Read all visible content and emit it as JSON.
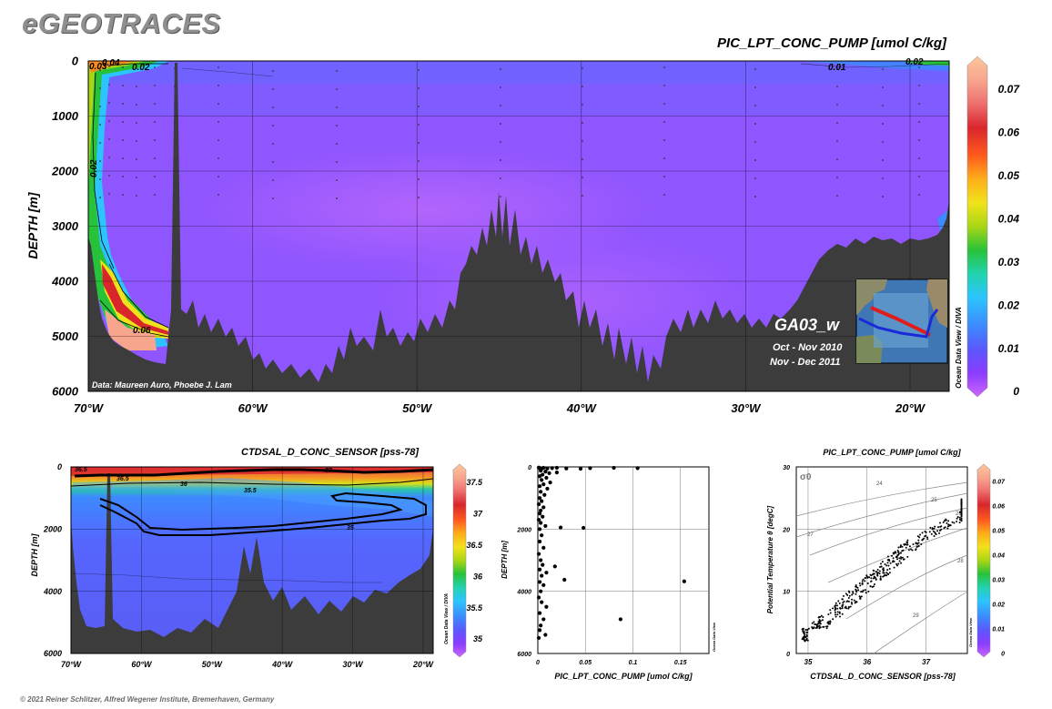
{
  "brand": "eGEOTRACES",
  "footer": "© 2021 Reiner Schlitzer, Alfred Wegener Institute, Bremerhaven, Germany",
  "colorscale": [
    "#cc66ff",
    "#8a3cff",
    "#5b58ff",
    "#3c8bff",
    "#2bc4ff",
    "#22d3b0",
    "#27c23a",
    "#a8d615",
    "#f0e21a",
    "#ffae19",
    "#ff5a1e",
    "#d9262c",
    "#ee6e6e",
    "#f8a58e",
    "#fbc79c"
  ],
  "section_main": {
    "title": "PIC_LPT_CONC_PUMP [umol C/kg]",
    "ylabel": "DEPTH [m]",
    "y_ticks": [
      "0",
      "1000",
      "2000",
      "3000",
      "4000",
      "5000",
      "6000"
    ],
    "x_ticks": [
      "70°W",
      "60°W",
      "50°W",
      "40°W",
      "30°W",
      "20°W"
    ],
    "colorbar_ticks": [
      "0.07",
      "0.06",
      "0.05",
      "0.04",
      "0.03",
      "0.02",
      "0.01",
      "0"
    ],
    "contour_labels": [
      "0.04",
      "0.02",
      "0.01",
      "0.02",
      "0.02",
      "0.06",
      "0.03"
    ],
    "credit": "Data: Maureen Auro, Phoebe J. Lam",
    "cruise": "GA03_w",
    "period1": "Oct - Nov 2010",
    "period2": "Nov - Dec 2011",
    "odv": "Ocean Data View / DIVA"
  },
  "section_sal": {
    "title": "CTDSAL_D_CONC_SENSOR [pss-78]",
    "ylabel": "DEPTH [m]",
    "y_ticks": [
      "0",
      "2000",
      "4000",
      "6000"
    ],
    "x_ticks": [
      "70°W",
      "60°W",
      "50°W",
      "40°W",
      "30°W",
      "20°W"
    ],
    "colorbar_ticks": [
      "37.5",
      "37",
      "36.5",
      "36",
      "35.5",
      "35"
    ],
    "contour_labels": [
      "36.5",
      "36",
      "35.5",
      "37",
      "35"
    ],
    "odv": "Ocean Data View / DIVA"
  },
  "chart_data": [
    {
      "type": "scatter",
      "title": "",
      "xlabel": "PIC_LPT_CONC_PUMP [umol C/kg]",
      "ylabel": "DEPTH [m]",
      "xlim": [
        0,
        0.18
      ],
      "ylim": [
        6000,
        0
      ],
      "x_ticks": [
        "0",
        "0.05",
        "0.1",
        "0.15"
      ],
      "y_ticks": [
        "0",
        "2000",
        "4000",
        "6000"
      ],
      "odv": "Ocean Data View",
      "points": [
        [
          0.001,
          20
        ],
        [
          0.002,
          40
        ],
        [
          0.004,
          60
        ],
        [
          0.006,
          30
        ],
        [
          0.01,
          50
        ],
        [
          0.015,
          40
        ],
        [
          0.02,
          30
        ],
        [
          0.03,
          50
        ],
        [
          0.045,
          60
        ],
        [
          0.055,
          40
        ],
        [
          0.08,
          30
        ],
        [
          0.105,
          40
        ],
        [
          0.003,
          120
        ],
        [
          0.008,
          150
        ],
        [
          0.012,
          200
        ],
        [
          0.005,
          250
        ],
        [
          0.02,
          180
        ],
        [
          0.002,
          300
        ],
        [
          0.009,
          350
        ],
        [
          0.004,
          420
        ],
        [
          0.013,
          500
        ],
        [
          0.006,
          560
        ],
        [
          0.002,
          620
        ],
        [
          0.01,
          700
        ],
        [
          0.003,
          800
        ],
        [
          0.007,
          900
        ],
        [
          0.002,
          1000
        ],
        [
          0.004,
          1100
        ],
        [
          0.001,
          1200
        ],
        [
          0.006,
          1300
        ],
        [
          0.003,
          1400
        ],
        [
          0.002,
          1500
        ],
        [
          0.005,
          1600
        ],
        [
          0.001,
          1700
        ],
        [
          0.003,
          1800
        ],
        [
          0.008,
          1900
        ],
        [
          0.002,
          2000
        ],
        [
          0.024,
          1950
        ],
        [
          0.048,
          1960
        ],
        [
          0.004,
          2200
        ],
        [
          0.002,
          2400
        ],
        [
          0.006,
          2600
        ],
        [
          0.001,
          2800
        ],
        [
          0.003,
          3000
        ],
        [
          0.005,
          3150
        ],
        [
          0.002,
          3300
        ],
        [
          0.009,
          3400
        ],
        [
          0.004,
          3500
        ],
        [
          0.018,
          3200
        ],
        [
          0.028,
          3630
        ],
        [
          0.002,
          3700
        ],
        [
          0.006,
          3800
        ],
        [
          0.003,
          4000
        ],
        [
          0.001,
          4200
        ],
        [
          0.004,
          4350
        ],
        [
          0.009,
          4500
        ],
        [
          0.002,
          4700
        ],
        [
          0.006,
          4900
        ],
        [
          0.003,
          5100
        ],
        [
          0.002,
          5250
        ],
        [
          0.008,
          5400
        ],
        [
          0.001,
          5500
        ],
        [
          0.087,
          4900
        ],
        [
          0.154,
          3680
        ]
      ]
    },
    {
      "type": "scatter",
      "title": "PIC_LPT_CONC_PUMP [umol C/kg]",
      "xlabel": "CTDSAL_D_CONC_SENSOR [pss-78]",
      "ylabel": "Potential Temperature θ [degC]",
      "xlim": [
        34.8,
        37.7
      ],
      "ylim": [
        0,
        30
      ],
      "x_ticks": [
        "35",
        "36",
        "37"
      ],
      "y_ticks": [
        "0",
        "10",
        "20",
        "30"
      ],
      "sigma_label": "σ0",
      "isopycnal_labels": [
        "24",
        "25",
        "26",
        "27",
        "28",
        "29"
      ],
      "colorbar_ticks": [
        "0.07",
        "0.06",
        "0.05",
        "0.04",
        "0.03",
        "0.02",
        "0.01",
        "0"
      ],
      "odv": "Ocean Data View"
    }
  ]
}
